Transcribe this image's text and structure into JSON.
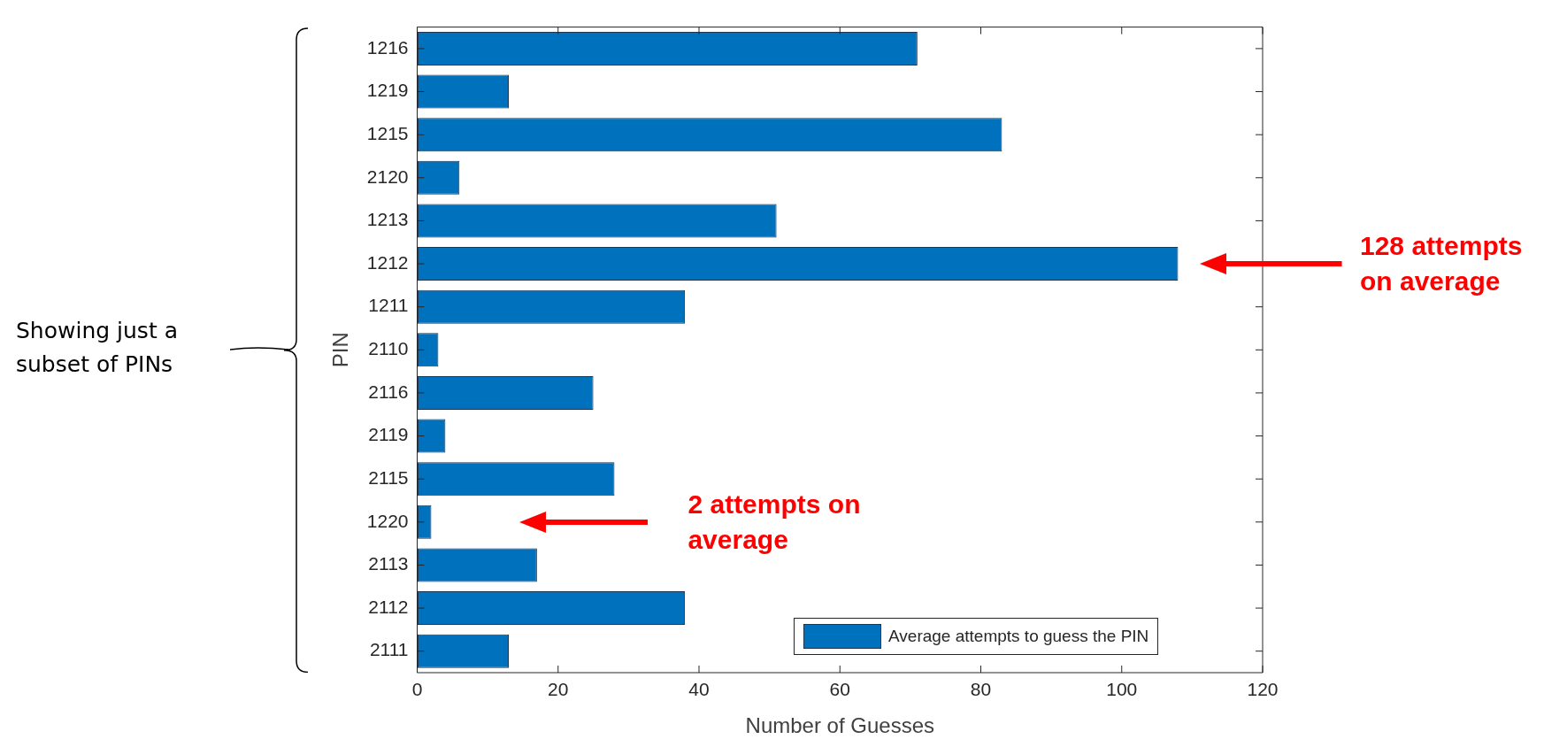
{
  "chart_data": {
    "type": "bar",
    "orientation": "horizontal",
    "xlabel": "Number of Guesses",
    "ylabel": "PIN",
    "categories": [
      "1216",
      "1219",
      "1215",
      "2120",
      "1213",
      "1212",
      "1211",
      "2110",
      "2116",
      "2119",
      "2115",
      "1220",
      "2113",
      "2112",
      "2111"
    ],
    "series": [
      {
        "name": "Average attempts to guess the PIN",
        "color": "#0072bd",
        "values": [
          71,
          13,
          83,
          6,
          51,
          108,
          38,
          3,
          25,
          4,
          28,
          2,
          17,
          38,
          13
        ]
      }
    ],
    "xlim": [
      0,
      120
    ],
    "xticks": [
      0,
      20,
      40,
      60,
      80,
      100,
      120
    ],
    "grid": false,
    "legend": "bottom right",
    "annotations": [
      "Showing just a subset of PINs",
      "128 attempts on average",
      "2 attempts on average"
    ]
  }
}
